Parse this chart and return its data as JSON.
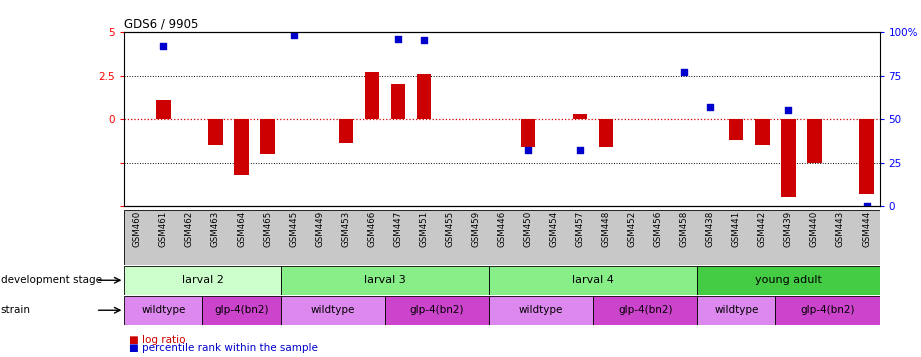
{
  "title": "GDS6 / 9905",
  "samples": [
    "GSM460",
    "GSM461",
    "GSM462",
    "GSM463",
    "GSM464",
    "GSM465",
    "GSM445",
    "GSM449",
    "GSM453",
    "GSM466",
    "GSM447",
    "GSM451",
    "GSM455",
    "GSM459",
    "GSM446",
    "GSM450",
    "GSM454",
    "GSM457",
    "GSM448",
    "GSM452",
    "GSM456",
    "GSM458",
    "GSM438",
    "GSM441",
    "GSM442",
    "GSM439",
    "GSM440",
    "GSM443",
    "GSM444"
  ],
  "log_ratios": [
    0.0,
    1.1,
    0.0,
    -1.5,
    -3.2,
    -2.0,
    0.0,
    0.0,
    -1.4,
    2.7,
    2.0,
    2.6,
    0.0,
    0.0,
    0.0,
    -1.6,
    0.0,
    0.3,
    -1.6,
    0.0,
    0.0,
    0.0,
    0.0,
    -1.2,
    -1.5,
    -4.5,
    -2.5,
    0.0,
    -4.3
  ],
  "blue_squares": {
    "1": 4.2,
    "6": 4.85,
    "10": 4.6,
    "11": 4.55,
    "15": -1.8,
    "17": -1.8,
    "21": 2.7,
    "22": 0.7,
    "25": 0.5,
    "28": -5.0
  },
  "bar_color": "#cc0000",
  "dot_color": "#0000cc",
  "dev_stages": [
    {
      "label": "larval 2",
      "start": 0,
      "end": 5,
      "color": "#ccffcc"
    },
    {
      "label": "larval 3",
      "start": 6,
      "end": 13,
      "color": "#88ee88"
    },
    {
      "label": "larval 4",
      "start": 14,
      "end": 21,
      "color": "#88ee88"
    },
    {
      "label": "young adult",
      "start": 22,
      "end": 28,
      "color": "#44cc44"
    }
  ],
  "strains": [
    {
      "label": "wildtype",
      "start": 0,
      "end": 2,
      "color": "#dd88ee"
    },
    {
      "label": "glp-4(bn2)",
      "start": 3,
      "end": 5,
      "color": "#cc44cc"
    },
    {
      "label": "wildtype",
      "start": 6,
      "end": 9,
      "color": "#dd88ee"
    },
    {
      "label": "glp-4(bn2)",
      "start": 10,
      "end": 13,
      "color": "#cc44cc"
    },
    {
      "label": "wildtype",
      "start": 14,
      "end": 17,
      "color": "#dd88ee"
    },
    {
      "label": "glp-4(bn2)",
      "start": 18,
      "end": 21,
      "color": "#cc44cc"
    },
    {
      "label": "wildtype",
      "start": 22,
      "end": 24,
      "color": "#dd88ee"
    },
    {
      "label": "glp-4(bn2)",
      "start": 25,
      "end": 28,
      "color": "#cc44cc"
    }
  ],
  "yticks_left": [
    5,
    2.5,
    0,
    -2.5,
    -5
  ],
  "yticks_right": [
    5,
    2.5,
    0,
    -2.5,
    -5
  ],
  "ylabels_left": [
    "5",
    "2.5",
    "0",
    "",
    ""
  ],
  "ylabels_right": [
    "100%",
    "75",
    "50",
    "25",
    "0"
  ]
}
